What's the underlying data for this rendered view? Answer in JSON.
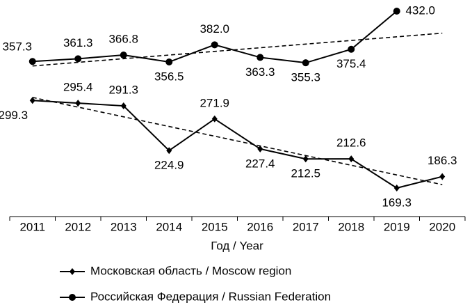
{
  "chart_data": {
    "type": "line",
    "x_label": "Год / Year",
    "categories": [
      "2011",
      "2012",
      "2013",
      "2014",
      "2015",
      "2016",
      "2017",
      "2018",
      "2019",
      "2020"
    ],
    "series": [
      {
        "name": "Московская область / Moscow region",
        "color": "#000000",
        "marker": "diamond",
        "trendline": true,
        "values": [
          299.3,
          295.4,
          291.3,
          224.9,
          271.9,
          227.4,
          212.5,
          212.6,
          169.3,
          186.3
        ],
        "value_labels": [
          "299.3",
          "295.4",
          "291.3",
          "224.9",
          "271.9",
          "227.4",
          "212.5",
          "212.6",
          "169.3",
          "186.3"
        ]
      },
      {
        "name": "Российская Федерация / Russian Federation",
        "color": "#000000",
        "marker": "circle",
        "trendline": true,
        "values": [
          357.3,
          361.3,
          366.8,
          356.5,
          382.0,
          363.3,
          355.3,
          375.4,
          432.0,
          null
        ],
        "value_labels": [
          "357.3",
          "361.3",
          "366.8",
          "356.5",
          "382.0",
          "363.3",
          "355.3",
          "375.4",
          "432.0",
          null
        ]
      }
    ]
  }
}
